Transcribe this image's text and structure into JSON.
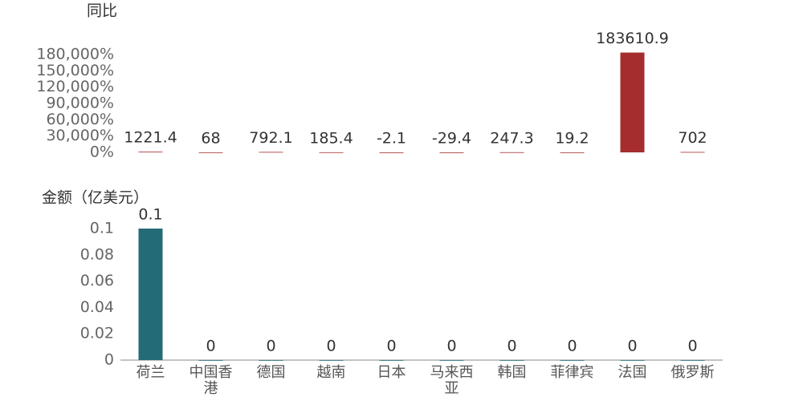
{
  "chart_data": [
    {
      "type": "bar",
      "title": "同比",
      "color": "#a52d2d",
      "values": [
        1221.4,
        68,
        792.1,
        185.4,
        -2.1,
        -29.4,
        247.3,
        19.2,
        183610.9,
        702
      ],
      "ylim": [
        0,
        180000
      ],
      "yticks": [
        {
          "value": 0,
          "label": "0%"
        },
        {
          "value": 30000,
          "label": "30,000%"
        },
        {
          "value": 60000,
          "label": "60,000%"
        },
        {
          "value": 90000,
          "label": "90,000%"
        },
        {
          "value": 120000,
          "label": "120,000%"
        },
        {
          "value": 150000,
          "label": "150,000%"
        },
        {
          "value": 180000,
          "label": "180,000%"
        }
      ]
    },
    {
      "type": "bar",
      "title": "金额（亿美元）",
      "color": "#246b78",
      "categories": [
        "荷兰",
        "中国香港",
        "德国",
        "越南",
        "日本",
        "马来西亚",
        "韩国",
        "菲律宾",
        "法国",
        "俄罗斯"
      ],
      "values": [
        0.1,
        0,
        0,
        0,
        0,
        0,
        0,
        0,
        0,
        0
      ],
      "ylim": [
        0,
        0.1
      ],
      "yticks": [
        0,
        0.02,
        0.04,
        0.06,
        0.08,
        0.1
      ]
    }
  ]
}
